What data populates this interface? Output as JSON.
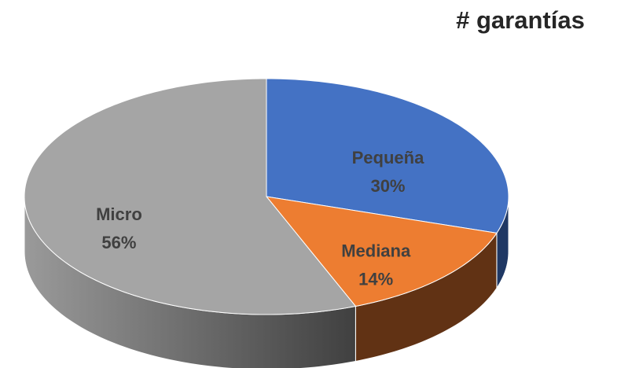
{
  "chart_data": {
    "type": "pie",
    "title": "# garantías",
    "categories": [
      "Pequeña",
      "Mediana",
      "Micro"
    ],
    "values": [
      30,
      14,
      56
    ],
    "value_labels": [
      "30%",
      "14%",
      "56%"
    ],
    "colors": [
      "#4472c4",
      "#ed7d31",
      "#a5a5a5"
    ],
    "side_colors": [
      "#1f3864",
      "#613214",
      "#6b6b6b"
    ]
  }
}
